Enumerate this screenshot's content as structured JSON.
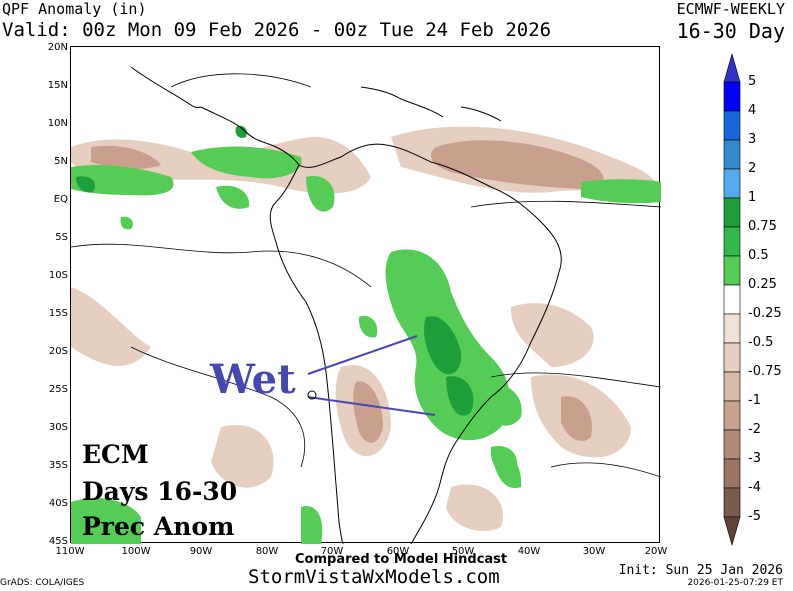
{
  "header": {
    "title_left": "QPF Anomaly (in)",
    "valid_line": "Valid: 00z Mon 09 Feb 2026 - 00z Tue 24 Feb 2026",
    "model": "ECMWF-WEEKLY",
    "period": "16-30 Day"
  },
  "map": {
    "lat_labels": [
      "20N",
      "15N",
      "10N",
      "5N",
      "EQ",
      "5S",
      "10S",
      "15S",
      "20S",
      "25S",
      "30S",
      "35S",
      "40S",
      "45S"
    ],
    "lon_labels": [
      "110W",
      "100W",
      "90W",
      "80W",
      "70W",
      "60W",
      "50W",
      "40W",
      "30W",
      "20W"
    ],
    "annotation": "Wet",
    "overlay_lines": [
      "ECM",
      "Days 16-30",
      "Prec Anom"
    ]
  },
  "colorbar": {
    "labels": [
      "5",
      "4",
      "3",
      "2",
      "1",
      "0.75",
      "0.5",
      "0.25",
      "-0.25",
      "-0.5",
      "-0.75",
      "-1",
      "-2",
      "-3",
      "-4",
      "-5"
    ],
    "colors": [
      "#3333cc",
      "#0000ff",
      "#1a66d9",
      "#3388cc",
      "#55aaee",
      "#1e9e3a",
      "#33b84a",
      "#55cc55",
      "#ffffff",
      "#efe1d6",
      "#e6cfc0",
      "#d8b9a7",
      "#c9a08d",
      "#b38a78",
      "#9c7363",
      "#7a5a4d",
      "#5e4238"
    ]
  },
  "footer": {
    "compared": "Compared to Model Hindcast",
    "site": "StormVistaWxModels.com",
    "grads": "GrADS: COLA/IGES",
    "init": "Init: Sun 25 Jan 2026",
    "timestamp": "2026-01-25-07:29 ET"
  }
}
